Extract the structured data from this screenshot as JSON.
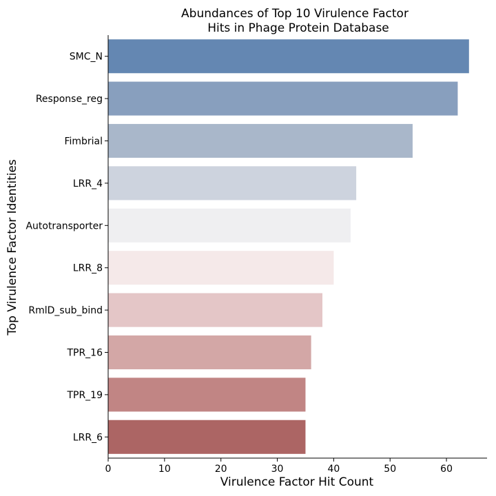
{
  "chart_data": {
    "type": "bar",
    "orientation": "horizontal",
    "title": [
      "Abundances of Top 10 Virulence Factor",
      "Hits in Phage Protein Database"
    ],
    "xlabel": "Virulence Factor Hit Count",
    "ylabel": "Top Virulence Factor Identities",
    "xlim": [
      0,
      67.2
    ],
    "xticks": [
      0,
      10,
      20,
      30,
      40,
      50,
      60
    ],
    "grid": false,
    "legend": "none",
    "categories": [
      "SMC_N",
      "Response_reg",
      "Fimbrial",
      "LRR_4",
      "Autotransporter",
      "LRR_8",
      "RmlD_sub_bind",
      "TPR_16",
      "TPR_19",
      "LRR_6"
    ],
    "values": [
      64,
      62,
      54,
      44,
      43,
      40,
      38,
      36,
      35,
      35
    ],
    "colors": [
      "#6487b2",
      "#889fbe",
      "#a9b7ca",
      "#cdd3de",
      "#efeff1",
      "#f5e9e9",
      "#e4c6c7",
      "#d3a7a6",
      "#c18584",
      "#ac6564"
    ]
  }
}
